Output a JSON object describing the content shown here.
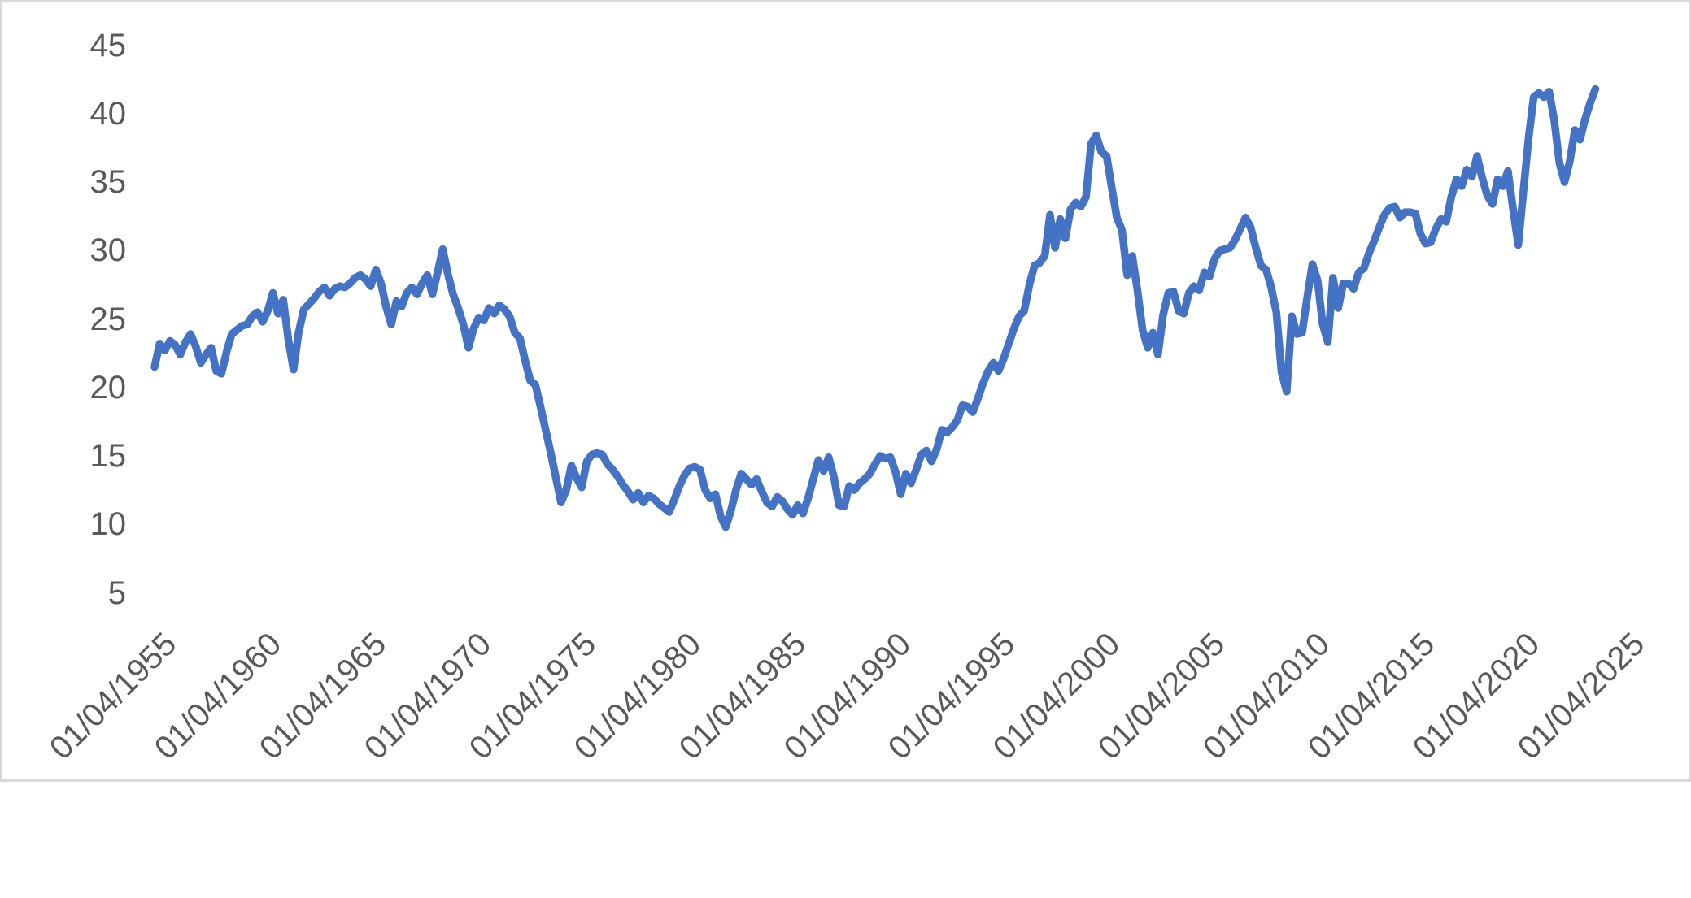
{
  "colors": {
    "line": "#4472C4",
    "axis_label": "#595959",
    "chart_border": "#D9D9D9",
    "background": "#FFFFFF"
  },
  "chart_data": {
    "type": "line",
    "title": "",
    "legend": "none",
    "grid": "off",
    "x_axis": {
      "tick_labels": [
        "01/04/1955",
        "01/04/1960",
        "01/04/1965",
        "01/04/1970",
        "01/04/1975",
        "01/04/1980",
        "01/04/1985",
        "01/04/1990",
        "01/04/1995",
        "01/04/2000",
        "01/04/2005",
        "01/04/2010",
        "01/04/2015",
        "01/04/2020",
        "01/04/2025"
      ],
      "tick_interval_years": 5,
      "label_rotation_degrees": 45
    },
    "y_axis": {
      "ticks": [
        45,
        40,
        35,
        30,
        25,
        20,
        15,
        10,
        5
      ],
      "min": 5,
      "max": 45
    },
    "series": [
      {
        "color": "#4472C4",
        "x_start_year": 1955.25,
        "x_step_years": 0.25,
        "x_end_year": 2025.25,
        "values": [
          21.5,
          23.2,
          22.7,
          23.4,
          23.1,
          22.4,
          23.3,
          23.9,
          23.0,
          21.8,
          22.4,
          22.9,
          21.2,
          21.0,
          22.6,
          23.9,
          24.2,
          24.5,
          24.6,
          25.2,
          25.5,
          24.8,
          25.6,
          26.9,
          25.4,
          26.4,
          23.5,
          21.3,
          24.0,
          25.7,
          26.1,
          26.5,
          27.0,
          27.3,
          26.7,
          27.2,
          27.4,
          27.3,
          27.6,
          28.0,
          28.2,
          27.9,
          27.4,
          28.6,
          27.6,
          25.9,
          24.6,
          26.3,
          25.9,
          26.9,
          27.3,
          26.8,
          27.6,
          28.2,
          26.8,
          28.4,
          30.1,
          28.3,
          26.8,
          25.8,
          24.6,
          22.9,
          24.3,
          25.1,
          24.9,
          25.8,
          25.4,
          26.0,
          25.7,
          25.2,
          24.0,
          23.6,
          22.0,
          20.5,
          20.2,
          18.6,
          16.9,
          15.2,
          13.4,
          11.6,
          12.5,
          14.3,
          13.4,
          12.7,
          14.6,
          15.1,
          15.2,
          15.1,
          14.4,
          14.0,
          13.5,
          12.9,
          12.4,
          11.8,
          12.3,
          11.6,
          12.1,
          11.9,
          11.5,
          11.2,
          10.9,
          11.8,
          12.8,
          13.6,
          14.1,
          14.2,
          14.0,
          12.5,
          11.9,
          12.2,
          10.6,
          9.8,
          11.0,
          12.5,
          13.7,
          13.3,
          12.9,
          13.3,
          12.4,
          11.6,
          11.3,
          12.0,
          11.7,
          11.1,
          10.7,
          11.4,
          10.8,
          11.9,
          13.3,
          14.7,
          13.9,
          14.9,
          13.5,
          11.4,
          11.3,
          12.8,
          12.5,
          13.0,
          13.3,
          13.7,
          14.4,
          15.0,
          14.8,
          14.9,
          13.8,
          12.2,
          13.7,
          13.0,
          14.0,
          15.1,
          15.4,
          14.6,
          15.5,
          16.9,
          16.7,
          17.1,
          17.6,
          18.7,
          18.6,
          18.2,
          19.2,
          20.3,
          21.2,
          21.8,
          21.2,
          22.1,
          23.2,
          24.3,
          25.2,
          25.6,
          27.5,
          28.9,
          29.1,
          29.6,
          32.6,
          30.2,
          32.3,
          30.9,
          33.0,
          33.5,
          33.2,
          33.9,
          37.8,
          38.4,
          37.2,
          36.9,
          34.6,
          32.4,
          31.5,
          28.2,
          29.6,
          27.1,
          24.2,
          22.9,
          24.0,
          22.4,
          25.3,
          26.9,
          27.0,
          25.6,
          25.4,
          26.9,
          27.4,
          27.1,
          28.4,
          28.1,
          29.4,
          30.0,
          30.1,
          30.2,
          30.8,
          31.6,
          32.4,
          31.7,
          30.2,
          28.9,
          28.6,
          27.3,
          25.5,
          21.1,
          19.7,
          25.2,
          23.9,
          24.0,
          26.6,
          29.0,
          27.8,
          24.6,
          23.3,
          28.0,
          25.8,
          27.6,
          27.6,
          27.2,
          28.4,
          28.7,
          29.8,
          30.7,
          31.7,
          32.6,
          33.1,
          33.2,
          32.4,
          32.8,
          32.8,
          32.7,
          31.2,
          30.5,
          30.6,
          31.6,
          32.3,
          32.1,
          33.9,
          35.2,
          34.7,
          35.9,
          35.4,
          36.9,
          35.3,
          34.0,
          33.4,
          35.2,
          34.7,
          35.8,
          33.0,
          30.4,
          34.3,
          38.2,
          41.2,
          41.5,
          41.2,
          41.6,
          39.5,
          36.4,
          35.0,
          36.5,
          38.8,
          38.1,
          39.6,
          40.8,
          41.8
        ]
      }
    ]
  }
}
